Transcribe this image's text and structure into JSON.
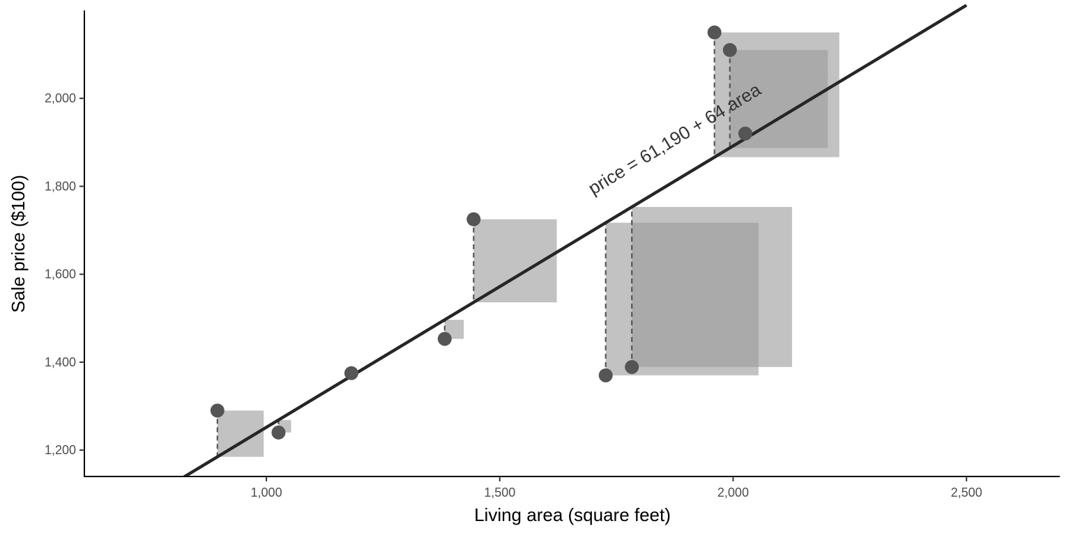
{
  "chart_data": {
    "type": "scatter",
    "xlabel": "Living area (square feet)",
    "ylabel": "Sale price ($100)",
    "xlim": [
      610,
      2700
    ],
    "ylim": [
      1140,
      2200
    ],
    "x_ticks": [
      1000,
      1500,
      2000,
      2500
    ],
    "x_tick_labels": [
      "1,000",
      "1,500",
      "2,000",
      "2,500"
    ],
    "y_ticks": [
      1200,
      1400,
      1600,
      1800,
      2000
    ],
    "y_tick_labels": [
      "1,200",
      "1,400",
      "1,600",
      "1,800",
      "2,000"
    ],
    "grid": false,
    "points": [
      {
        "x": 895,
        "y": 1290
      },
      {
        "x": 1026,
        "y": 1240
      },
      {
        "x": 1182,
        "y": 1375
      },
      {
        "x": 1382,
        "y": 1453
      },
      {
        "x": 1444,
        "y": 1725
      },
      {
        "x": 1727,
        "y": 1370
      },
      {
        "x": 1783,
        "y": 1389
      },
      {
        "x": 1960,
        "y": 2150
      },
      {
        "x": 1993,
        "y": 2110
      },
      {
        "x": 2026,
        "y": 1920
      }
    ],
    "regression": {
      "intercept": 611.9,
      "slope": 0.64
    },
    "annotation": {
      "text": "price = 61,190 + 64 area",
      "x": 1700,
      "y": 1780
    },
    "colors": {
      "points": "#555555",
      "line": "#262626",
      "squares": "#999999",
      "dashes": "#555555"
    }
  }
}
